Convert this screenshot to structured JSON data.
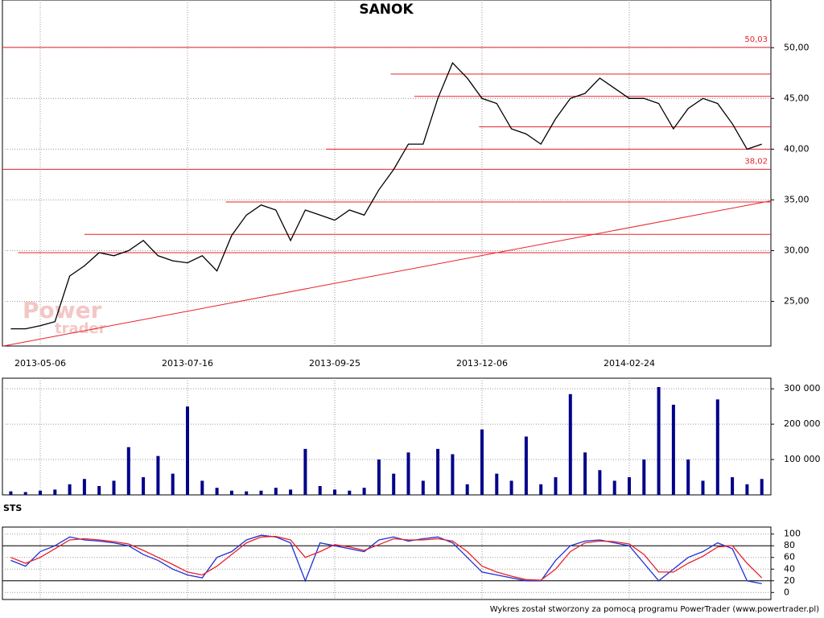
{
  "chart_data": [
    {
      "type": "line",
      "title": "SANOK",
      "categories": [
        null,
        null,
        "2013-05-06",
        null,
        null,
        null,
        null,
        null,
        null,
        null,
        null,
        null,
        "2013-07-16",
        null,
        null,
        null,
        null,
        null,
        null,
        null,
        null,
        null,
        "2013-09-25",
        null,
        null,
        null,
        null,
        null,
        null,
        null,
        null,
        null,
        "2013-12-06",
        null,
        null,
        null,
        null,
        null,
        null,
        null,
        null,
        null,
        "2014-02-24",
        null,
        null,
        null,
        null,
        null,
        null,
        null,
        null,
        null
      ],
      "series": [
        {
          "color": "#000000",
          "values": [
            22.3,
            22.3,
            22.6,
            23,
            27.5,
            28.5,
            29.8,
            29.5,
            30,
            31,
            29.5,
            29,
            28.8,
            29.5,
            28,
            31.5,
            33.5,
            34.5,
            34,
            31,
            34,
            33.5,
            33,
            34,
            33.5,
            36,
            38,
            40.5,
            40.5,
            45,
            48.5,
            47,
            45,
            44.5,
            42,
            41.5,
            40.5,
            43,
            45,
            45.5,
            47,
            46,
            45,
            45,
            44.5,
            42,
            44,
            45,
            44.5,
            42.5,
            40,
            40.5
          ]
        }
      ],
      "ylim": [
        20.6,
        54.7
      ],
      "yticks": [
        {
          "value": 25,
          "label": "25,00"
        },
        {
          "value": 30,
          "label": "30,00"
        },
        {
          "value": 35,
          "label": "35,00"
        },
        {
          "value": 40,
          "label": "40,00"
        },
        {
          "value": 45,
          "label": "45,00"
        },
        {
          "value": 50,
          "label": "50,00"
        }
      ],
      "level_labels": [
        {
          "value": 50.03,
          "label": "50,03"
        },
        {
          "value": 38.02,
          "label": "38,02"
        }
      ],
      "support_lines": [
        {
          "value": 47.4,
          "from": 25.8
        },
        {
          "value": 45.2,
          "from": 27.4
        },
        {
          "value": 42.2,
          "from": 31.8
        },
        {
          "value": 40.0,
          "from": 21.4
        },
        {
          "value": 34.8,
          "from": 14.6
        },
        {
          "value": 31.6,
          "from": 5
        },
        {
          "value": 29.8,
          "from": 0.5
        }
      ],
      "line_color": "#e8212a",
      "trendline": {
        "x": [
          -0.5,
          51.6
        ],
        "y": [
          20.6,
          34.9
        ]
      },
      "watermark": [
        "Power",
        "trader"
      ]
    },
    {
      "type": "bar",
      "color": "#00008b",
      "values": [
        10000,
        8000,
        12000,
        15000,
        30000,
        45000,
        25000,
        40000,
        135000,
        50000,
        110000,
        60000,
        250000,
        40000,
        20000,
        12000,
        10000,
        12000,
        20000,
        15000,
        130000,
        25000,
        15000,
        12000,
        20000,
        100000,
        60000,
        120000,
        40000,
        130000,
        115000,
        30000,
        185000,
        60000,
        40000,
        165000,
        30000,
        50000,
        285000,
        120000,
        70000,
        40000,
        50000,
        100000,
        305000,
        255000,
        100000,
        40000,
        270000,
        50000,
        30000,
        45000
      ],
      "ylim": [
        0,
        330000
      ],
      "yticks": [
        {
          "value": 100000,
          "label": "100 000"
        },
        {
          "value": 200000,
          "label": "200 000"
        },
        {
          "value": 300000,
          "label": "300 000"
        }
      ]
    },
    {
      "type": "line",
      "title": "STS",
      "series": [
        {
          "color": "#1f2fd1",
          "values": [
            55,
            45,
            70,
            80,
            95,
            90,
            88,
            85,
            80,
            65,
            55,
            40,
            30,
            25,
            60,
            70,
            90,
            98,
            95,
            85,
            20,
            85,
            80,
            75,
            70,
            90,
            95,
            88,
            92,
            95,
            85,
            60,
            35,
            30,
            25,
            20,
            20,
            55,
            80,
            88,
            90,
            85,
            80,
            50,
            20,
            40,
            60,
            70,
            85,
            75,
            20,
            15
          ]
        },
        {
          "color": "#e8212a",
          "values": [
            60,
            50,
            60,
            75,
            90,
            92,
            90,
            87,
            83,
            72,
            60,
            48,
            35,
            30,
            45,
            65,
            85,
            95,
            96,
            90,
            60,
            70,
            82,
            78,
            72,
            82,
            92,
            90,
            90,
            92,
            88,
            70,
            45,
            35,
            28,
            22,
            21,
            40,
            70,
            85,
            88,
            87,
            83,
            65,
            35,
            35,
            50,
            62,
            78,
            80,
            50,
            25
          ]
        }
      ],
      "ylim": [
        -12,
        112
      ],
      "yticks": [
        0,
        20,
        40,
        60,
        80,
        100
      ],
      "bands": [
        20,
        80
      ]
    }
  ],
  "footer": "Wykres został stworzony za pomocą programu PowerTrader (www.powertrader.pl)"
}
